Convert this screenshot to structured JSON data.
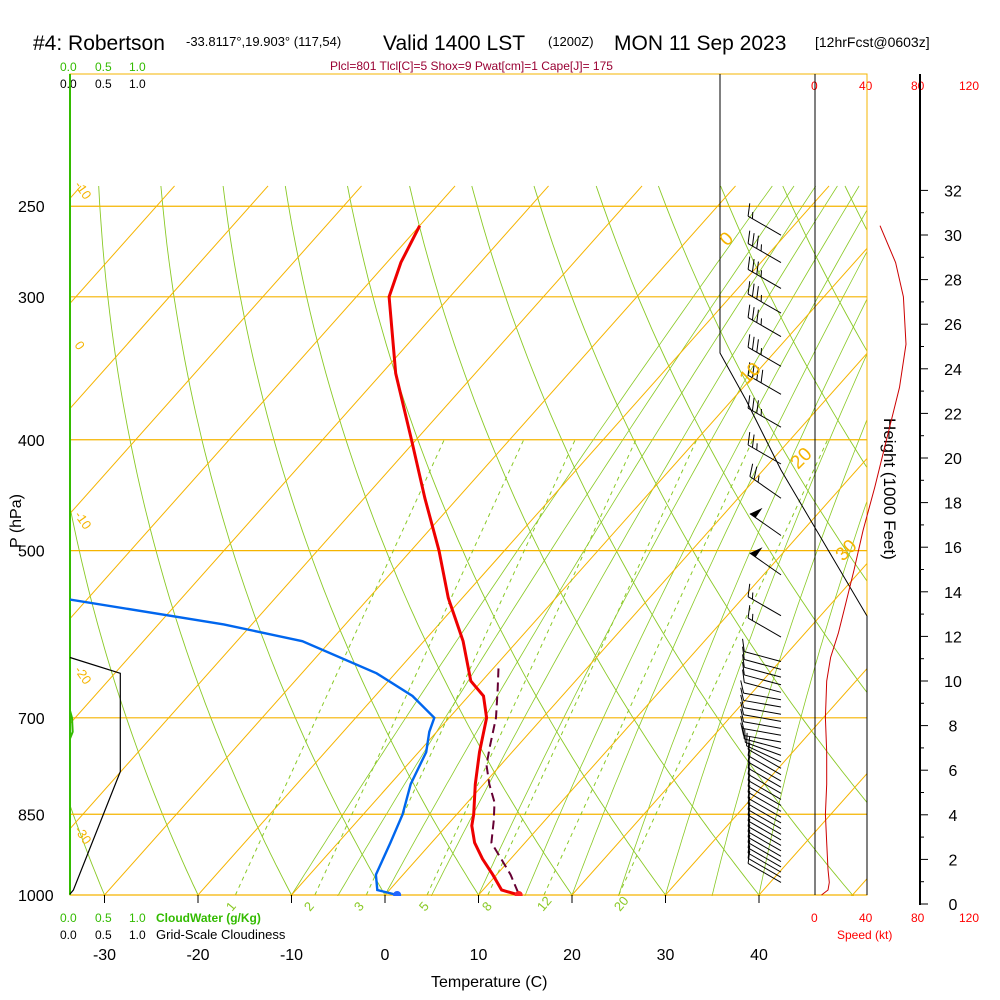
{
  "header": {
    "station": "#4: Robertson",
    "location": "-33.8117°,19.903° (117,54)",
    "valid": "Valid 1400 LST",
    "utc": "(1200Z)",
    "date": "MON 11 Sep 2023",
    "forecast": "[12hrFcst@0603z]",
    "indices": "Plcl=801 Tlcl[C]=5 Shox=9 Pwat[cm]=1 Cape[J]= 175"
  },
  "labels": {
    "pressure_axis": "P (hPa)",
    "temperature_axis": "Temperature (C)",
    "height_axis": "Height (1000 Feet)",
    "speed_axis": "Speed (kt)",
    "cloudwater": "CloudWater (g/Kg)",
    "cloudiness": "Grid-Scale Cloudiness"
  },
  "scales": {
    "green_top": [
      "0.0",
      "0.5",
      "1.0"
    ],
    "black_top": [
      "0.0",
      "0.5",
      "1.0"
    ],
    "green_bottom": [
      "0.0",
      "0.5",
      "1.0"
    ],
    "black_bottom": [
      "0.0",
      "0.5",
      "1.0"
    ],
    "speed_top": [
      "0",
      "40",
      "80",
      "120"
    ],
    "speed_bottom": [
      "0",
      "40",
      "80",
      "120"
    ]
  },
  "colors": {
    "isobar": "#f5b400",
    "isotherm": "#f5b400",
    "dry_adiabat": "#8ac926",
    "moist_adiabat": "#8ac926",
    "mixing_ratio": "#8ac926",
    "temperature": "#ee0000",
    "dewpoint": "#0066ee",
    "parcel": "#660033",
    "wind_speed": "#cc0000",
    "cloudwater": "#33bb00",
    "cloudiness": "#000000"
  },
  "chart_data": {
    "type": "line",
    "subtype": "skew-T log-P sounding",
    "p_ticks": [
      250,
      300,
      400,
      500,
      700,
      850,
      1000
    ],
    "t_ticks": [
      -30,
      -20,
      -10,
      0,
      10,
      20,
      30,
      40
    ],
    "height_ticks": [
      0,
      2,
      4,
      6,
      8,
      10,
      12,
      14,
      16,
      18,
      20,
      22,
      24,
      26,
      28,
      30,
      32
    ],
    "isotherm_labels": [
      "-10",
      "0",
      "-10",
      "-20",
      "-30",
      "0",
      "10",
      "20",
      "30"
    ],
    "mixing_ratio_labels": [
      "1",
      "2",
      "3",
      "5",
      "8",
      "12",
      "20"
    ],
    "temperature_profile": [
      {
        "p": 1000,
        "t": 14.3
      },
      {
        "p": 990,
        "t": 12.0
      },
      {
        "p": 960,
        "t": 9.6
      },
      {
        "p": 930,
        "t": 7.0
      },
      {
        "p": 900,
        "t": 4.6
      },
      {
        "p": 870,
        "t": 2.7
      },
      {
        "p": 850,
        "t": 1.8
      },
      {
        "p": 800,
        "t": -0.9
      },
      {
        "p": 750,
        "t": -3.5
      },
      {
        "p": 700,
        "t": -6.0
      },
      {
        "p": 670,
        "t": -8.4
      },
      {
        "p": 650,
        "t": -11.2
      },
      {
        "p": 600,
        "t": -15.8
      },
      {
        "p": 550,
        "t": -21.5
      },
      {
        "p": 500,
        "t": -27.0
      },
      {
        "p": 450,
        "t": -33.5
      },
      {
        "p": 400,
        "t": -40.5
      },
      {
        "p": 350,
        "t": -48.5
      },
      {
        "p": 300,
        "t": -56.5
      },
      {
        "p": 280,
        "t": -58.5
      },
      {
        "p": 260,
        "t": -60.0
      }
    ],
    "dewpoint_profile": [
      {
        "p": 1000,
        "t": 1.3
      },
      {
        "p": 990,
        "t": -1.3
      },
      {
        "p": 960,
        "t": -2.9
      },
      {
        "p": 900,
        "t": -4.4
      },
      {
        "p": 850,
        "t": -5.8
      },
      {
        "p": 800,
        "t": -7.8
      },
      {
        "p": 750,
        "t": -9.2
      },
      {
        "p": 720,
        "t": -10.8
      },
      {
        "p": 700,
        "t": -11.6
      },
      {
        "p": 670,
        "t": -16.0
      },
      {
        "p": 640,
        "t": -22.0
      },
      {
        "p": 600,
        "t": -33.0
      },
      {
        "p": 580,
        "t": -43.0
      },
      {
        "p": 550,
        "t": -63.0
      },
      {
        "p": 520,
        "t": -83.0
      }
    ],
    "parcel_profile": [
      {
        "p": 995,
        "t": 14.0
      },
      {
        "p": 960,
        "t": 11.5
      },
      {
        "p": 930,
        "t": 9.0
      },
      {
        "p": 900,
        "t": 6.4
      },
      {
        "p": 860,
        "t": 4.5
      },
      {
        "p": 830,
        "t": 2.9
      },
      {
        "p": 800,
        "t": 0.6
      },
      {
        "p": 770,
        "t": -1.5
      },
      {
        "p": 740,
        "t": -3.0
      },
      {
        "p": 700,
        "t": -5.0
      },
      {
        "p": 660,
        "t": -7.6
      },
      {
        "p": 630,
        "t": -9.7
      }
    ],
    "surface_temperature": 14.3,
    "surface_dewpoint": 1.3,
    "wind_speed_profile": [
      {
        "p": 1000,
        "t_kt": 5
      },
      {
        "p": 990,
        "t_kt": 10
      },
      {
        "p": 975,
        "t_kt": 11
      },
      {
        "p": 950,
        "t_kt": 10
      },
      {
        "p": 900,
        "t_kt": 9
      },
      {
        "p": 850,
        "t_kt": 8
      },
      {
        "p": 800,
        "t_kt": 9
      },
      {
        "p": 750,
        "t_kt": 9
      },
      {
        "p": 700,
        "t_kt": 8
      },
      {
        "p": 650,
        "t_kt": 9
      },
      {
        "p": 620,
        "t_kt": 12
      },
      {
        "p": 590,
        "t_kt": 18
      },
      {
        "p": 560,
        "t_kt": 23
      },
      {
        "p": 520,
        "t_kt": 30
      },
      {
        "p": 480,
        "t_kt": 37
      },
      {
        "p": 440,
        "t_kt": 46
      },
      {
        "p": 400,
        "t_kt": 55
      },
      {
        "p": 360,
        "t_kt": 65
      },
      {
        "p": 330,
        "t_kt": 70
      },
      {
        "p": 300,
        "t_kt": 68
      },
      {
        "p": 280,
        "t_kt": 62
      },
      {
        "p": 260,
        "t_kt": 50
      }
    ],
    "cloudiness_profile": [
      {
        "p": 998,
        "c": 0.0
      },
      {
        "p": 990,
        "c": 0.05
      },
      {
        "p": 780,
        "c": 0.74
      },
      {
        "p": 640,
        "c": 0.74
      },
      {
        "p": 620,
        "c": 0.0
      }
    ],
    "cloudwater_profile": [
      {
        "p": 730,
        "c": 0.0
      },
      {
        "p": 720,
        "c": 0.04
      },
      {
        "p": 700,
        "c": 0.03
      },
      {
        "p": 690,
        "c": 0.0
      }
    ],
    "wind_barbs": [
      {
        "p": 975,
        "dir": 300,
        "kt": 10
      },
      {
        "p": 965,
        "dir": 300,
        "kt": 10
      },
      {
        "p": 955,
        "dir": 300,
        "kt": 10
      },
      {
        "p": 945,
        "dir": 300,
        "kt": 10
      },
      {
        "p": 935,
        "dir": 300,
        "kt": 10
      },
      {
        "p": 925,
        "dir": 300,
        "kt": 10
      },
      {
        "p": 915,
        "dir": 300,
        "kt": 10
      },
      {
        "p": 905,
        "dir": 300,
        "kt": 10
      },
      {
        "p": 895,
        "dir": 300,
        "kt": 10
      },
      {
        "p": 885,
        "dir": 300,
        "kt": 10
      },
      {
        "p": 875,
        "dir": 300,
        "kt": 10
      },
      {
        "p": 865,
        "dir": 300,
        "kt": 10
      },
      {
        "p": 855,
        "dir": 300,
        "kt": 10
      },
      {
        "p": 845,
        "dir": 300,
        "kt": 10
      },
      {
        "p": 835,
        "dir": 300,
        "kt": 10
      },
      {
        "p": 825,
        "dir": 300,
        "kt": 10
      },
      {
        "p": 815,
        "dir": 300,
        "kt": 10
      },
      {
        "p": 805,
        "dir": 300,
        "kt": 10
      },
      {
        "p": 795,
        "dir": 300,
        "kt": 10
      },
      {
        "p": 785,
        "dir": 300,
        "kt": 10
      },
      {
        "p": 775,
        "dir": 300,
        "kt": 10
      },
      {
        "p": 765,
        "dir": 295,
        "kt": 10
      },
      {
        "p": 755,
        "dir": 290,
        "kt": 10
      },
      {
        "p": 745,
        "dir": 285,
        "kt": 10
      },
      {
        "p": 735,
        "dir": 280,
        "kt": 10
      },
      {
        "p": 725,
        "dir": 280,
        "kt": 10
      },
      {
        "p": 715,
        "dir": 280,
        "kt": 10
      },
      {
        "p": 705,
        "dir": 280,
        "kt": 10
      },
      {
        "p": 695,
        "dir": 280,
        "kt": 10
      },
      {
        "p": 685,
        "dir": 280,
        "kt": 10
      },
      {
        "p": 675,
        "dir": 280,
        "kt": 10
      },
      {
        "p": 665,
        "dir": 285,
        "kt": 10
      },
      {
        "p": 655,
        "dir": 285,
        "kt": 10
      },
      {
        "p": 645,
        "dir": 285,
        "kt": 10
      },
      {
        "p": 635,
        "dir": 285,
        "kt": 10
      },
      {
        "p": 625,
        "dir": 285,
        "kt": 10
      },
      {
        "p": 595,
        "dir": 300,
        "kt": 15
      },
      {
        "p": 570,
        "dir": 300,
        "kt": 15
      },
      {
        "p": 525,
        "dir": 305,
        "kt": 50
      },
      {
        "p": 485,
        "dir": 305,
        "kt": 50
      },
      {
        "p": 450,
        "dir": 305,
        "kt": 25
      },
      {
        "p": 420,
        "dir": 300,
        "kt": 25
      },
      {
        "p": 390,
        "dir": 300,
        "kt": 35
      },
      {
        "p": 365,
        "dir": 300,
        "kt": 40
      },
      {
        "p": 345,
        "dir": 300,
        "kt": 35
      },
      {
        "p": 325,
        "dir": 300,
        "kt": 35
      },
      {
        "p": 310,
        "dir": 300,
        "kt": 35
      },
      {
        "p": 295,
        "dir": 300,
        "kt": 35
      },
      {
        "p": 280,
        "dir": 300,
        "kt": 35
      },
      {
        "p": 265,
        "dir": 300,
        "kt": 15
      }
    ]
  }
}
